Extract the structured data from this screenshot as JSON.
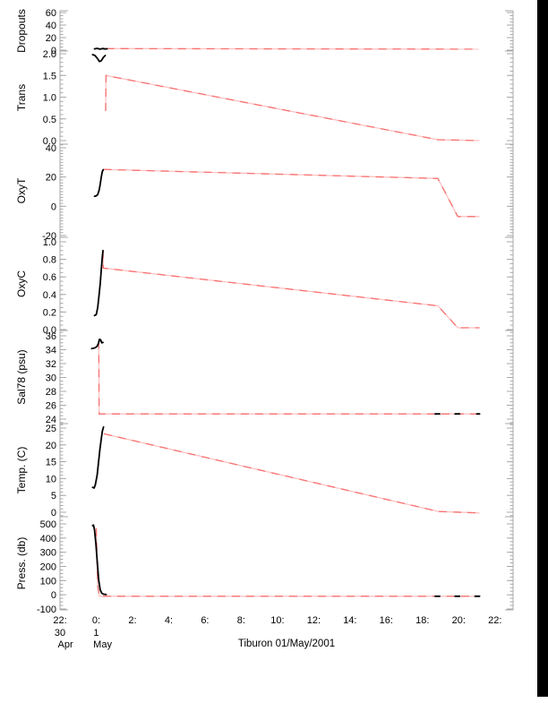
{
  "title": "Tiburon 01/May/2001",
  "colors": {
    "red_light": "#ffc2c2",
    "red": "#f87272",
    "black": "#000000",
    "axis": "#a8a8a8"
  },
  "x_axis": {
    "range_hours": [
      -2,
      23
    ],
    "tick_hours": [
      -2,
      0,
      2,
      4,
      6,
      8,
      10,
      12,
      14,
      16,
      18,
      20,
      22
    ],
    "tick_labels": [
      "22:",
      "0:",
      "2:",
      "4:",
      "6:",
      "8:",
      "10:",
      "12:",
      "14:",
      "16:",
      "18:",
      "20:",
      "22:"
    ],
    "day_labels": [
      {
        "label": "30",
        "hour": -2
      },
      {
        "label": "1",
        "hour": 0
      }
    ],
    "month_labels": [
      {
        "label": "Apr",
        "hour": -1.7
      },
      {
        "label": "May",
        "hour": 0.35
      }
    ]
  },
  "chart_data": [
    {
      "type": "line",
      "ylabel": "Dropouts",
      "ylim": [
        0,
        60
      ],
      "yticks": [
        0,
        20,
        40,
        60
      ],
      "ytick_labels": [
        "0",
        "20",
        "40",
        "60"
      ],
      "minor_step": 5,
      "series": [
        {
          "name": "upcast-red",
          "color": "red",
          "x": [
            0.55,
            21.1
          ],
          "y": [
            2.4,
            1.6
          ]
        },
        {
          "name": "downcast-black",
          "color": "black",
          "x": [
            -0.1,
            0.05,
            0.2,
            0.35,
            0.5,
            0.6
          ],
          "y": [
            2,
            2.8,
            1.6,
            2.6,
            1.8,
            2.2
          ]
        }
      ]
    },
    {
      "type": "line",
      "ylabel": "Trans",
      "ylim": [
        0.0,
        2.0
      ],
      "yticks": [
        0.0,
        0.5,
        1.0,
        1.5,
        2.0
      ],
      "ytick_labels": [
        "0.0",
        "0.5",
        "1.0",
        "1.5",
        "2.0"
      ],
      "minor_step": 0.1,
      "series": [
        {
          "name": "upcast-red",
          "color": "red",
          "x": [
            0.52,
            0.54,
            18.85,
            21.15
          ],
          "y": [
            0.68,
            1.5,
            0.02,
            0.0
          ]
        },
        {
          "name": "downcast-black",
          "color": "black",
          "x": [
            -0.2,
            -0.08,
            0.05,
            0.18,
            0.28,
            0.4,
            0.5
          ],
          "y": [
            1.98,
            1.96,
            1.9,
            1.82,
            1.84,
            1.92,
            1.96
          ]
        }
      ]
    },
    {
      "type": "line",
      "ylabel": "OxyT",
      "ylim": [
        -20,
        40
      ],
      "yticks": [
        -20,
        0,
        20,
        40
      ],
      "ytick_labels": [
        "-20",
        "0",
        "20",
        "40"
      ],
      "minor_step": 2,
      "series": [
        {
          "name": "upcast-red",
          "color": "red",
          "x": [
            0.4,
            18.85,
            19.95,
            21.15
          ],
          "y": [
            25.2,
            19.0,
            -7.0,
            -7.0
          ]
        },
        {
          "name": "downcast-black",
          "color": "black",
          "x": [
            -0.1,
            0.0,
            0.08,
            0.16,
            0.22,
            0.28,
            0.33,
            0.38
          ],
          "y": [
            6.8,
            7.1,
            8.0,
            11,
            15,
            20,
            23.5,
            25
          ]
        }
      ]
    },
    {
      "type": "line",
      "ylabel": "OxyC",
      "ylim": [
        0.0,
        1.0
      ],
      "yticks": [
        0.0,
        0.2,
        0.4,
        0.6,
        0.8,
        1.0
      ],
      "ytick_labels": [
        "0.0",
        "0.2",
        "0.4",
        "0.6",
        "0.8",
        "1.0"
      ],
      "minor_step": 0.05,
      "series": [
        {
          "name": "upcast-red",
          "color": "red",
          "x": [
            0.37,
            0.39,
            18.85,
            19.95,
            21.15
          ],
          "y": [
            0.9,
            0.7,
            0.27,
            0.02,
            0.02
          ]
        },
        {
          "name": "downcast-black",
          "color": "black",
          "x": [
            -0.1,
            0.0,
            0.08,
            0.15,
            0.22,
            0.28,
            0.33,
            0.37
          ],
          "y": [
            0.16,
            0.17,
            0.25,
            0.38,
            0.52,
            0.68,
            0.82,
            0.9
          ]
        }
      ]
    },
    {
      "type": "line",
      "ylabel": "Sal78 (psu)",
      "ylim": [
        24,
        36
      ],
      "yticks": [
        24,
        26,
        28,
        30,
        32,
        34,
        36
      ],
      "ytick_labels": [
        "24",
        "26",
        "28",
        "30",
        "32",
        "34",
        "36"
      ],
      "minor_step": 0.5,
      "series": [
        {
          "name": "upcast-red",
          "color": "red",
          "x": [
            0.14,
            0.16,
            21.15
          ],
          "y": [
            35.3,
            24.75,
            24.75
          ]
        },
        {
          "name": "downcast-black",
          "color": "black",
          "x": [
            -0.25,
            -0.15,
            -0.05,
            0.05,
            0.12,
            0.18,
            0.24,
            0.3,
            0.37
          ],
          "y": [
            34.15,
            34.2,
            34.3,
            34.5,
            34.9,
            35.5,
            35.45,
            35.0,
            35.05
          ]
        },
        {
          "name": "surface-mark",
          "color": "black",
          "x": [
            18.7,
            18.95
          ],
          "y": [
            24.75,
            24.75
          ]
        },
        {
          "name": "surface-mark",
          "color": "black",
          "x": [
            19.8,
            20.05
          ],
          "y": [
            24.75,
            24.75
          ]
        },
        {
          "name": "surface-mark",
          "color": "black",
          "x": [
            21.0,
            21.15
          ],
          "y": [
            24.75,
            24.75
          ]
        }
      ]
    },
    {
      "type": "line",
      "ylabel": "Temp. (C)",
      "ylim": [
        0,
        25
      ],
      "yticks": [
        0,
        5,
        10,
        15,
        20,
        25
      ],
      "ytick_labels": [
        "0",
        "5",
        "10",
        "15",
        "20",
        "25"
      ],
      "minor_step": 1,
      "series": [
        {
          "name": "upcast-red",
          "color": "red",
          "x": [
            0.42,
            18.9,
            21.15
          ],
          "y": [
            23.3,
            0.2,
            -0.2
          ]
        },
        {
          "name": "downcast-black",
          "color": "black",
          "x": [
            -0.2,
            -0.12,
            -0.05,
            0.05,
            0.12,
            0.2,
            0.28,
            0.34,
            0.4
          ],
          "y": [
            7.4,
            7.2,
            8.2,
            11,
            14.5,
            18.5,
            21.8,
            24.2,
            25.3
          ]
        }
      ]
    },
    {
      "type": "line",
      "ylabel": "Press. (db)",
      "ylim": [
        -100,
        500
      ],
      "yticks": [
        -100,
        0,
        100,
        200,
        300,
        400,
        500
      ],
      "ytick_labels": [
        "-100",
        "0",
        "100",
        "200",
        "300",
        "400",
        "500"
      ],
      "minor_step": 25,
      "series": [
        {
          "name": "upcast-red",
          "color": "red",
          "x": [
            0.0,
            0.08,
            0.18,
            21.15
          ],
          "y": [
            470,
            60,
            -10,
            -10
          ]
        },
        {
          "name": "downcast-black",
          "color": "black",
          "x": [
            -0.2,
            -0.15,
            -0.1,
            -0.02,
            0.06,
            0.14,
            0.22,
            0.3,
            0.4,
            0.55
          ],
          "y": [
            488,
            492,
            460,
            360,
            225,
            100,
            35,
            12,
            4,
            2
          ]
        },
        {
          "name": "surface-mark",
          "color": "black",
          "x": [
            18.7,
            18.95
          ],
          "y": [
            -10,
            -10
          ]
        },
        {
          "name": "surface-mark",
          "color": "black",
          "x": [
            19.8,
            20.05
          ],
          "y": [
            -10,
            -10
          ]
        },
        {
          "name": "surface-mark",
          "color": "black",
          "x": [
            20.9,
            21.15
          ],
          "y": [
            -10,
            -10
          ]
        }
      ]
    }
  ]
}
